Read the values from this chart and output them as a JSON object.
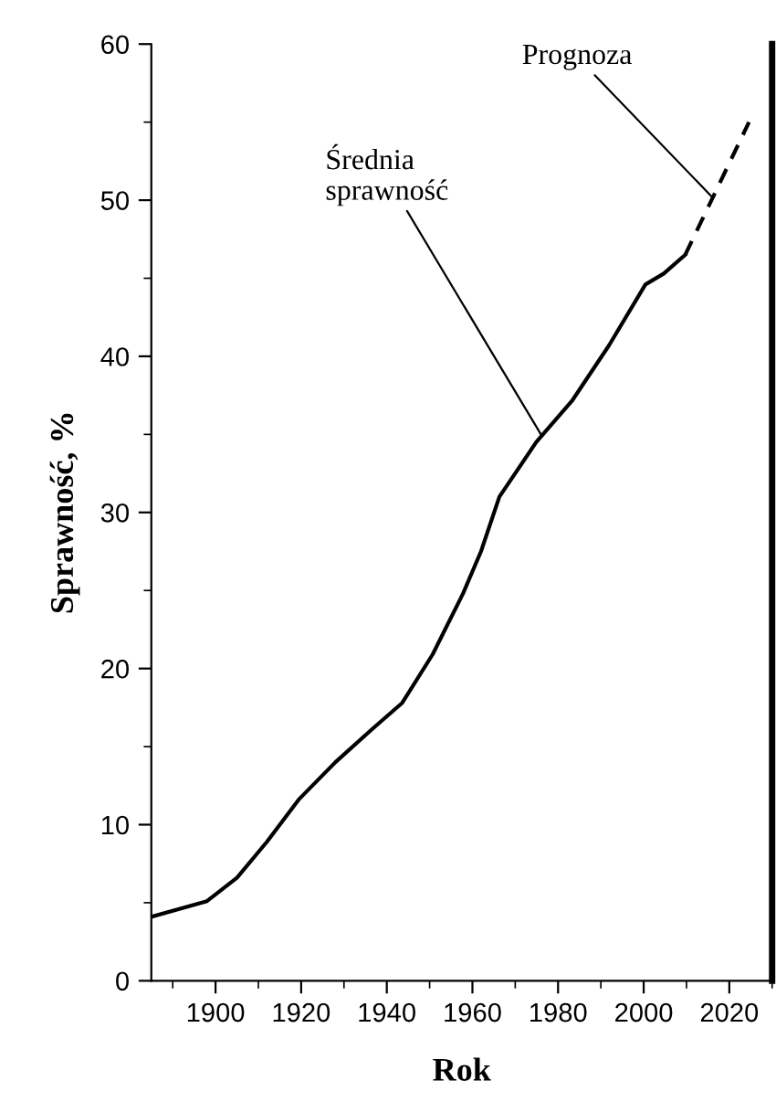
{
  "chart_data": {
    "type": "line",
    "xlabel": "Rok",
    "ylabel": "Sprawność, %",
    "xlim": [
      1885,
      2030
    ],
    "ylim": [
      0,
      60
    ],
    "xticks": [
      1900,
      1920,
      1940,
      1960,
      1980,
      2000,
      2020
    ],
    "yticks": [
      0,
      10,
      20,
      30,
      40,
      50,
      60
    ],
    "series": [
      {
        "color": "#000000",
        "line_style": "solid",
        "x": [
          1885,
          1898,
          1905,
          1912,
          1919.4,
          1928,
          1936.5,
          1943.6,
          1950.7,
          1957.8,
          1962,
          1966.3,
          1974.9,
          1983.4,
          1991.9,
          2000.4,
          2004.7,
          2009.7
        ],
        "values": [
          4.1,
          5.1,
          6.6,
          8.9,
          11.6,
          14.0,
          16.1,
          17.8,
          20.9,
          24.8,
          27.5,
          31.0,
          34.5,
          37.2,
          40.7,
          44.6,
          45.3,
          46.5
        ]
      },
      {
        "color": "#000000",
        "line_style": "dashed",
        "x": [
          2009.7,
          2024.6
        ],
        "values": [
          46.5,
          55.0
        ]
      }
    ],
    "annotations": [
      {
        "text": "Prognoza",
        "x": 2016,
        "y": 50.2
      },
      {
        "text": "Średnia\nsprawność",
        "x": 1976,
        "y": 35
      }
    ],
    "grid": false,
    "legend": false,
    "marker": "none"
  }
}
